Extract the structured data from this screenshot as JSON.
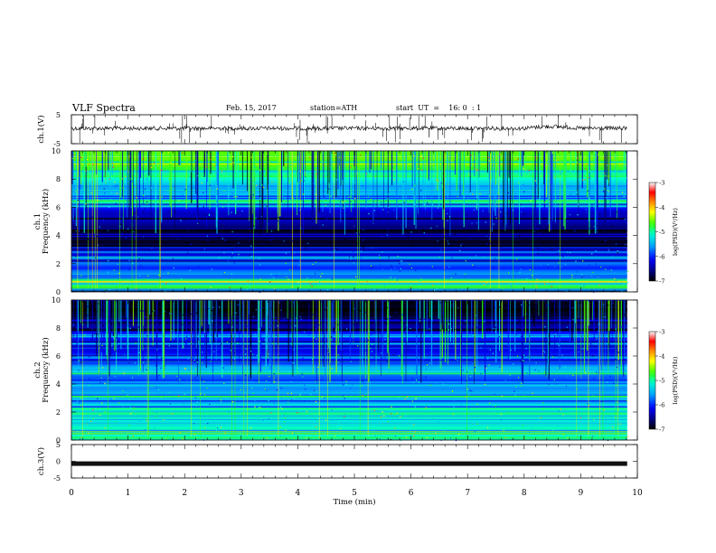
{
  "header": {
    "title": "VLF  Spectra",
    "date": "Feb. 15, 2017",
    "station": "station=ATH",
    "start_ut": "start  UT  =    16: 0  : 1"
  },
  "chart_data": [
    {
      "id": "ch1-waveform",
      "type": "line",
      "ylabel": "ch.1(V)",
      "ylim": [
        -5,
        5
      ],
      "yticks": [
        5,
        -5
      ],
      "xlim": [
        0,
        10
      ],
      "x_data_end": 9.82,
      "baseline_v": 0.3,
      "series": [
        {
          "x": [
            0,
            9.82
          ],
          "y": [
            0.3,
            0.3
          ]
        }
      ]
    },
    {
      "id": "ch1-spectrogram",
      "type": "heatmap",
      "ylabel": "ch.1\nFrequency  (kHz)",
      "ylim": [
        0,
        10
      ],
      "yticks": [
        0,
        2,
        4,
        6,
        8,
        10
      ],
      "xlim": [
        0,
        10
      ],
      "x_data_end": 9.82,
      "colorbar": {
        "label": "log(PSD)(V²/Hz)",
        "range": [
          -7,
          -3
        ],
        "ticks": [
          -3,
          -4,
          -5,
          -6,
          -7
        ]
      },
      "profile_kHz_logPSD": [
        [
          0.0,
          -6.8
        ],
        [
          0.3,
          -4.6
        ],
        [
          0.5,
          -5.0
        ],
        [
          0.8,
          -4.7
        ],
        [
          1.0,
          -5.8
        ],
        [
          1.4,
          -5.6
        ],
        [
          1.7,
          -6.1
        ],
        [
          2.0,
          -5.7
        ],
        [
          2.4,
          -6.0
        ],
        [
          2.8,
          -6.4
        ],
        [
          3.2,
          -6.5
        ],
        [
          3.5,
          -6.9
        ],
        [
          4.0,
          -6.9
        ],
        [
          4.4,
          -6.8
        ],
        [
          4.8,
          -6.5
        ],
        [
          5.2,
          -6.3
        ],
        [
          5.6,
          -6.4
        ],
        [
          6.0,
          -6.0
        ],
        [
          6.4,
          -5.5
        ],
        [
          6.8,
          -5.3
        ],
        [
          7.2,
          -5.6
        ],
        [
          7.6,
          -5.4
        ],
        [
          8.0,
          -5.1
        ],
        [
          8.5,
          -4.9
        ],
        [
          9.0,
          -4.7
        ],
        [
          9.5,
          -4.6
        ],
        [
          10.0,
          -4.6
        ]
      ]
    },
    {
      "id": "ch2-spectrogram",
      "type": "heatmap",
      "ylabel": "ch.2\nFrequency  (kHz)",
      "ylim": [
        0,
        10
      ],
      "yticks": [
        0,
        2,
        4,
        6,
        8,
        10
      ],
      "xlim": [
        0,
        10
      ],
      "x_data_end": 9.82,
      "colorbar": {
        "label": "log(PSD)(V²/Hz)",
        "range": [
          -7,
          -3
        ],
        "ticks": [
          -3,
          -4,
          -5,
          -6,
          -7
        ]
      },
      "profile_kHz_logPSD": [
        [
          0.0,
          -6.6
        ],
        [
          0.2,
          -4.8
        ],
        [
          0.5,
          -5.4
        ],
        [
          0.8,
          -5.0
        ],
        [
          1.2,
          -5.3
        ],
        [
          1.6,
          -5.0
        ],
        [
          2.0,
          -4.9
        ],
        [
          2.4,
          -5.3
        ],
        [
          2.8,
          -5.6
        ],
        [
          3.2,
          -5.2
        ],
        [
          3.6,
          -5.7
        ],
        [
          4.0,
          -5.5
        ],
        [
          4.4,
          -5.9
        ],
        [
          4.8,
          -5.6
        ],
        [
          5.2,
          -5.4
        ],
        [
          5.6,
          -6.2
        ],
        [
          6.0,
          -5.9
        ],
        [
          6.4,
          -6.3
        ],
        [
          6.8,
          -5.8
        ],
        [
          7.2,
          -6.1
        ],
        [
          7.6,
          -6.0
        ],
        [
          8.0,
          -6.4
        ],
        [
          8.5,
          -6.7
        ],
        [
          9.0,
          -6.9
        ],
        [
          9.5,
          -6.9
        ],
        [
          10.0,
          -6.8
        ]
      ]
    },
    {
      "id": "ch3-waveform",
      "type": "line",
      "ylabel": "ch.3(V)",
      "ylim": [
        -5,
        5
      ],
      "yticks": [
        5,
        0,
        -5
      ],
      "xlim": [
        0,
        10
      ],
      "x_data_end": 9.82,
      "xticks": [
        0,
        1,
        2,
        3,
        4,
        5,
        6,
        7,
        8,
        9,
        10
      ],
      "xlabel": "Time  (min)",
      "baseline_v": -0.7,
      "series": [
        {
          "x": [
            0,
            9.82
          ],
          "y": [
            -0.7,
            -0.7
          ]
        }
      ]
    }
  ],
  "colors": {
    "axes": "#000000",
    "waveform": "#111111",
    "colormap": [
      "#000000",
      "#000080",
      "#0000ff",
      "#00a8ff",
      "#00ffd0",
      "#33ff00",
      "#ffff00",
      "#ff8c00",
      "#ff0000",
      "#ffffff"
    ]
  }
}
